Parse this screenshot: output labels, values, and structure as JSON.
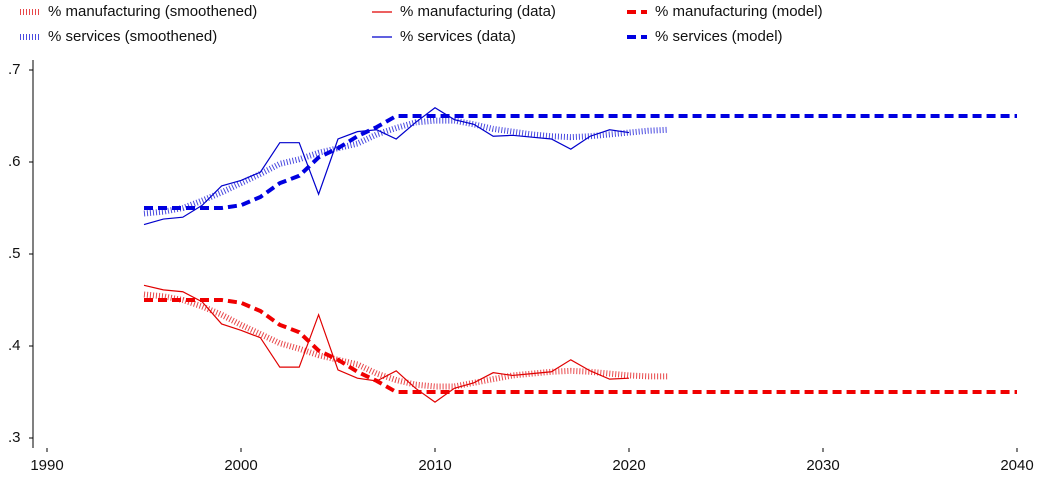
{
  "chart_data": {
    "type": "line",
    "xlim": [
      1990,
      2040
    ],
    "xticks": [
      1990,
      2000,
      2010,
      2020,
      2030,
      2040
    ],
    "ylim": [
      0.3,
      0.7
    ],
    "yticks": [
      {
        "value": 0.3,
        "label": ".3"
      },
      {
        "value": 0.4,
        "label": ".4"
      },
      {
        "value": 0.5,
        "label": ".5"
      },
      {
        "value": 0.6,
        "label": ".6"
      },
      {
        "value": 0.7,
        "label": ".7"
      }
    ],
    "grid": false,
    "legend": "top",
    "series": [
      {
        "name": "% manufacturing (smoothened)",
        "color": "#e8474a",
        "style": "dotted",
        "x": [
          1995,
          1996,
          1997,
          1998,
          1999,
          2000,
          2001,
          2002,
          2003,
          2004,
          2005,
          2006,
          2007,
          2008,
          2009,
          2010,
          2011,
          2012,
          2013,
          2014,
          2015,
          2016,
          2017,
          2018,
          2019,
          2020,
          2021,
          2022
        ],
        "values": [
          0.456,
          0.454,
          0.45,
          0.443,
          0.434,
          0.423,
          0.413,
          0.403,
          0.397,
          0.39,
          0.385,
          0.38,
          0.37,
          0.363,
          0.358,
          0.356,
          0.356,
          0.36,
          0.364,
          0.368,
          0.37,
          0.372,
          0.373,
          0.372,
          0.37,
          0.368,
          0.367,
          0.367
        ]
      },
      {
        "name": "% manufacturing (data)",
        "color": "#e00000",
        "style": "solid",
        "x": [
          1995,
          1996,
          1997,
          1998,
          1999,
          2000,
          2001,
          2002,
          2003,
          2004,
          2005,
          2006,
          2007,
          2008,
          2009,
          2010,
          2011,
          2012,
          2013,
          2014,
          2015,
          2016,
          2017,
          2018,
          2019,
          2020
        ],
        "values": [
          0.466,
          0.461,
          0.459,
          0.448,
          0.424,
          0.417,
          0.409,
          0.377,
          0.377,
          0.434,
          0.374,
          0.365,
          0.362,
          0.373,
          0.354,
          0.339,
          0.354,
          0.36,
          0.371,
          0.368,
          0.37,
          0.372,
          0.385,
          0.373,
          0.364,
          0.365
        ]
      },
      {
        "name": "% manufacturing (model)",
        "color": "#f00000",
        "style": "dashed",
        "x": [
          1995,
          1996,
          1997,
          1998,
          1999,
          2000,
          2001,
          2002,
          2003,
          2004,
          2005,
          2006,
          2007,
          2008,
          2040
        ],
        "values": [
          0.45,
          0.45,
          0.45,
          0.45,
          0.45,
          0.447,
          0.438,
          0.423,
          0.415,
          0.395,
          0.385,
          0.372,
          0.362,
          0.35,
          0.35
        ]
      },
      {
        "name": "% services (smoothened)",
        "color": "#4a4ae0",
        "style": "dotted",
        "x": [
          1995,
          1996,
          1997,
          1998,
          1999,
          2000,
          2001,
          2002,
          2003,
          2004,
          2005,
          2006,
          2007,
          2008,
          2009,
          2010,
          2011,
          2012,
          2013,
          2014,
          2015,
          2016,
          2017,
          2018,
          2019,
          2020,
          2021,
          2022
        ],
        "values": [
          0.544,
          0.546,
          0.55,
          0.558,
          0.567,
          0.577,
          0.587,
          0.598,
          0.603,
          0.61,
          0.615,
          0.62,
          0.63,
          0.637,
          0.643,
          0.645,
          0.645,
          0.641,
          0.636,
          0.633,
          0.63,
          0.628,
          0.627,
          0.628,
          0.63,
          0.632,
          0.634,
          0.635
        ]
      },
      {
        "name": "% services (data)",
        "color": "#0000cc",
        "style": "solid",
        "x": [
          1995,
          1996,
          1997,
          1998,
          1999,
          2000,
          2001,
          2002,
          2003,
          2004,
          2005,
          2006,
          2007,
          2008,
          2009,
          2010,
          2011,
          2012,
          2013,
          2014,
          2015,
          2016,
          2017,
          2018,
          2019,
          2020
        ],
        "values": [
          0.532,
          0.538,
          0.54,
          0.553,
          0.574,
          0.58,
          0.589,
          0.621,
          0.621,
          0.565,
          0.625,
          0.633,
          0.635,
          0.625,
          0.643,
          0.659,
          0.646,
          0.641,
          0.628,
          0.629,
          0.627,
          0.625,
          0.614,
          0.628,
          0.635,
          0.632
        ]
      },
      {
        "name": "% services (model)",
        "color": "#0000e0",
        "style": "dashed",
        "x": [
          1995,
          1996,
          1997,
          1998,
          1999,
          2000,
          2001,
          2002,
          2003,
          2004,
          2005,
          2006,
          2007,
          2008,
          2040
        ],
        "values": [
          0.55,
          0.55,
          0.55,
          0.55,
          0.55,
          0.553,
          0.562,
          0.577,
          0.585,
          0.605,
          0.615,
          0.628,
          0.638,
          0.65,
          0.65
        ]
      }
    ]
  }
}
